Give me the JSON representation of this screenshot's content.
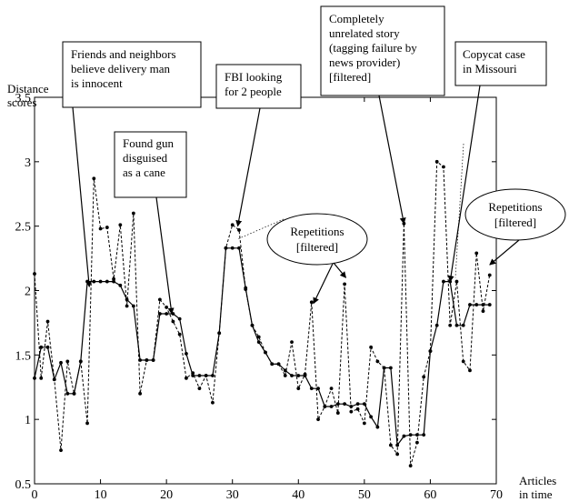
{
  "chart_data": {
    "type": "line",
    "title": "",
    "xlabel": "Articles in time",
    "ylabel": "Distance scores",
    "xlim": [
      0,
      70
    ],
    "ylim": [
      0.5,
      3.5
    ],
    "xticks": [
      0,
      10,
      20,
      30,
      40,
      50,
      60,
      70
    ],
    "yticks": [
      0.5,
      1,
      1.5,
      2,
      2.5,
      3,
      3.5
    ],
    "grid": false,
    "series": [
      {
        "style": "dashed",
        "x": [
          0,
          1,
          2,
          3,
          4,
          5,
          6,
          7,
          8,
          9,
          10,
          11,
          12,
          13,
          14,
          15,
          16,
          17,
          18,
          19,
          20,
          21,
          22,
          23,
          24,
          25,
          26,
          27,
          28,
          29,
          30,
          31,
          32,
          33,
          34,
          35,
          36,
          37,
          38,
          39,
          40,
          41,
          42,
          43,
          44,
          45,
          46,
          47,
          48,
          49,
          50,
          51,
          52,
          53,
          54,
          55,
          56,
          57,
          58,
          59,
          60,
          61,
          62,
          63,
          64,
          65,
          66,
          67,
          68,
          69
        ],
        "values": [
          2.13,
          1.32,
          1.76,
          1.31,
          0.76,
          1.45,
          1.2,
          1.45,
          0.97,
          2.87,
          2.48,
          2.49,
          2.09,
          2.51,
          1.88,
          2.6,
          1.2,
          1.46,
          1.46,
          1.93,
          1.87,
          1.76,
          1.66,
          1.32,
          1.36,
          1.24,
          1.34,
          1.13,
          1.67,
          2.33,
          2.51,
          2.47,
          2.01,
          1.73,
          1.64,
          1.52,
          1.43,
          1.43,
          1.34,
          1.6,
          1.24,
          1.35,
          1.91,
          1.0,
          1.1,
          1.24,
          1.05,
          2.05,
          1.06,
          1.08,
          0.97,
          1.56,
          1.45,
          1.4,
          0.8,
          0.73,
          2.52,
          0.64,
          0.82,
          1.33,
          1.53,
          3.0,
          2.96,
          1.73,
          2.07,
          1.45,
          1.38,
          2.29,
          1.84,
          2.12
        ]
      },
      {
        "style": "solid",
        "x": [
          0,
          1,
          2,
          3,
          4,
          5,
          6,
          7,
          8,
          9,
          10,
          11,
          12,
          13,
          14,
          15,
          16,
          17,
          18,
          19,
          20,
          21,
          22,
          23,
          24,
          25,
          26,
          27,
          28,
          29,
          30,
          31,
          32,
          33,
          34,
          35,
          36,
          37,
          38,
          39,
          40,
          41,
          42,
          43,
          44,
          45,
          46,
          47,
          48,
          49,
          50,
          51,
          52,
          53,
          54,
          55,
          56,
          57,
          58,
          59,
          60,
          61,
          62,
          63,
          64,
          65,
          66,
          67,
          68,
          69
        ],
        "values": [
          1.32,
          1.56,
          1.56,
          1.31,
          1.44,
          1.2,
          1.2,
          1.45,
          2.07,
          2.07,
          2.07,
          2.07,
          2.07,
          2.04,
          1.93,
          1.88,
          1.46,
          1.46,
          1.46,
          1.82,
          1.82,
          1.82,
          1.78,
          1.51,
          1.34,
          1.34,
          1.34,
          1.34,
          1.67,
          2.33,
          2.33,
          2.33,
          2.02,
          1.73,
          1.6,
          1.52,
          1.43,
          1.43,
          1.38,
          1.34,
          1.34,
          1.34,
          1.24,
          1.24,
          1.1,
          1.1,
          1.12,
          1.12,
          1.1,
          1.12,
          1.12,
          1.02,
          0.94,
          1.4,
          1.4,
          0.8,
          0.87,
          0.88,
          0.88,
          0.88,
          1.53,
          1.73,
          2.07,
          2.07,
          1.73,
          1.73,
          1.89,
          1.89,
          1.89,
          1.89
        ]
      }
    ],
    "annotations": [
      {
        "lines": [
          "Friends and neighbors",
          "believe delivery man",
          "is innocent"
        ],
        "shape": "box",
        "target": [
          8.3,
          2.03
        ]
      },
      {
        "lines": [
          "Found gun",
          "disguised",
          "as a cane"
        ],
        "shape": "box",
        "target": [
          20.8,
          1.82
        ]
      },
      {
        "lines": [
          "FBI looking",
          "for 2 people"
        ],
        "shape": "box",
        "target": [
          30.8,
          2.5
        ]
      },
      {
        "lines": [
          "Completely",
          "unrelated story",
          "(tagging failure by",
          "news provider)",
          "[filtered]"
        ],
        "shape": "box",
        "target": [
          56,
          2.52
        ]
      },
      {
        "lines": [
          "Copycat case",
          "in Missouri"
        ],
        "shape": "box",
        "target": [
          63,
          2.07
        ]
      },
      {
        "lines": [
          "Repetitions",
          "[filtered]"
        ],
        "shape": "ellipse",
        "target": [
          42.3,
          1.9
        ]
      },
      {
        "lines": [
          "Repetitions",
          "[filtered]"
        ],
        "shape": "ellipse",
        "target": [
          69,
          2.2
        ]
      }
    ]
  }
}
